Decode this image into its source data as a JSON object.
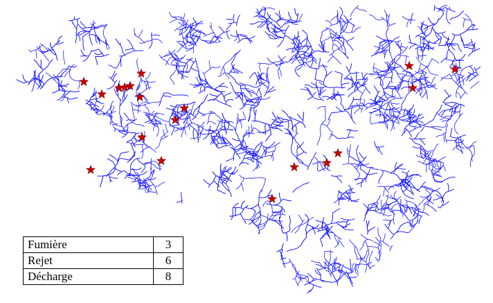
{
  "map": {
    "river_color": "#1a1aff",
    "marker_color": "#cc0000",
    "marker_outline": "#660000",
    "marker_icon": "star-icon"
  },
  "legend": {
    "rows": [
      {
        "label": "Fumière",
        "count": "3"
      },
      {
        "label": "Rejet",
        "count": "6"
      },
      {
        "label": "Décharge",
        "count": "8"
      }
    ]
  }
}
